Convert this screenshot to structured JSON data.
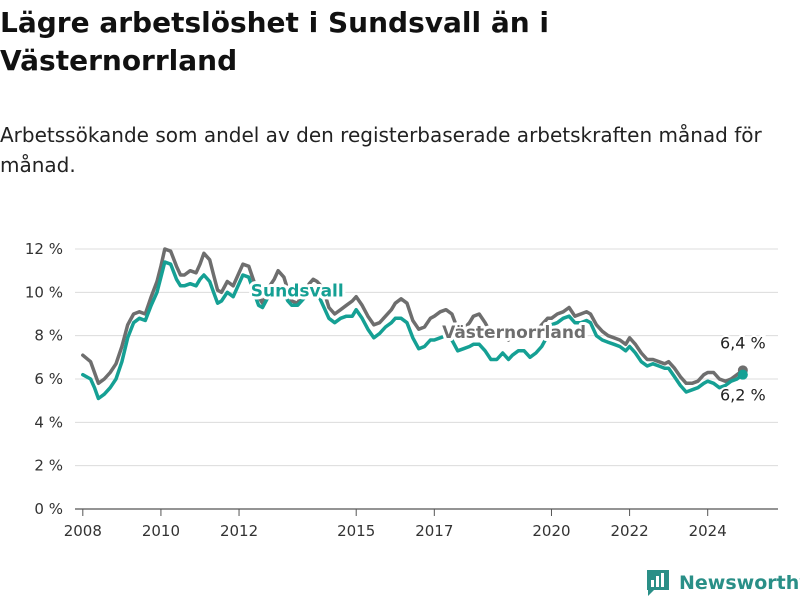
{
  "title": "Lägre arbetslöshet i Sundsvall än i Västernorrland",
  "subtitle": "Arbetssökande som andel av den registerbaserade arbetskraften månad för månad.",
  "brand": {
    "name": "Newsworthy",
    "logo_icon": "bar-chart-speech-bubble-icon"
  },
  "chart_data": {
    "type": "line",
    "ylim": [
      0,
      12
    ],
    "yticks": [
      0,
      2,
      4,
      6,
      8,
      10,
      12
    ],
    "ytick_labels": [
      "0 %",
      "2 %",
      "4 %",
      "6 %",
      "8 %",
      "10 %",
      "12 %"
    ],
    "xlim": [
      2007.8,
      2025.8
    ],
    "xticks": [
      2008,
      2010,
      2012,
      2015,
      2017,
      2020,
      2022,
      2024
    ],
    "xtick_labels": [
      "2008",
      "2010",
      "2012",
      "2015",
      "2017",
      "2020",
      "2022",
      "2024"
    ],
    "grid": true,
    "series": [
      {
        "name": "Västernorrland",
        "color": "#6e6e6e",
        "end_label": "6,4 %",
        "points": [
          [
            2008.0,
            7.1
          ],
          [
            2008.2,
            6.8
          ],
          [
            2008.3,
            6.3
          ],
          [
            2008.4,
            5.8
          ],
          [
            2008.55,
            6.0
          ],
          [
            2008.7,
            6.3
          ],
          [
            2008.85,
            6.7
          ],
          [
            2009.0,
            7.5
          ],
          [
            2009.15,
            8.5
          ],
          [
            2009.3,
            9.0
          ],
          [
            2009.45,
            9.1
          ],
          [
            2009.6,
            9.0
          ],
          [
            2009.75,
            9.8
          ],
          [
            2009.9,
            10.5
          ],
          [
            2010.0,
            11.2
          ],
          [
            2010.1,
            12.0
          ],
          [
            2010.25,
            11.9
          ],
          [
            2010.4,
            11.2
          ],
          [
            2010.5,
            10.8
          ],
          [
            2010.6,
            10.8
          ],
          [
            2010.75,
            11.0
          ],
          [
            2010.9,
            10.9
          ],
          [
            2011.0,
            11.3
          ],
          [
            2011.1,
            11.8
          ],
          [
            2011.25,
            11.5
          ],
          [
            2011.35,
            10.8
          ],
          [
            2011.45,
            10.1
          ],
          [
            2011.55,
            10.0
          ],
          [
            2011.7,
            10.5
          ],
          [
            2011.85,
            10.3
          ],
          [
            2012.0,
            10.9
          ],
          [
            2012.1,
            11.3
          ],
          [
            2012.25,
            11.2
          ],
          [
            2012.4,
            10.4
          ],
          [
            2012.5,
            9.8
          ],
          [
            2012.6,
            9.5
          ],
          [
            2012.75,
            10.2
          ],
          [
            2012.9,
            10.6
          ],
          [
            2013.0,
            11.0
          ],
          [
            2013.15,
            10.7
          ],
          [
            2013.25,
            10.1
          ],
          [
            2013.35,
            9.6
          ],
          [
            2013.5,
            9.5
          ],
          [
            2013.65,
            10.0
          ],
          [
            2013.8,
            10.4
          ],
          [
            2013.9,
            10.6
          ],
          [
            2014.0,
            10.5
          ],
          [
            2014.15,
            10.2
          ],
          [
            2014.3,
            9.3
          ],
          [
            2014.45,
            9.0
          ],
          [
            2014.6,
            9.2
          ],
          [
            2014.75,
            9.4
          ],
          [
            2014.9,
            9.6
          ],
          [
            2015.0,
            9.8
          ],
          [
            2015.15,
            9.4
          ],
          [
            2015.3,
            8.9
          ],
          [
            2015.45,
            8.5
          ],
          [
            2015.6,
            8.6
          ],
          [
            2015.75,
            8.9
          ],
          [
            2015.9,
            9.2
          ],
          [
            2016.0,
            9.5
          ],
          [
            2016.15,
            9.7
          ],
          [
            2016.3,
            9.5
          ],
          [
            2016.45,
            8.7
          ],
          [
            2016.6,
            8.3
          ],
          [
            2016.75,
            8.4
          ],
          [
            2016.9,
            8.8
          ],
          [
            2017.0,
            8.9
          ],
          [
            2017.15,
            9.1
          ],
          [
            2017.3,
            9.2
          ],
          [
            2017.45,
            9.0
          ],
          [
            2017.6,
            8.3
          ],
          [
            2017.75,
            8.3
          ],
          [
            2017.9,
            8.6
          ],
          [
            2018.0,
            8.9
          ],
          [
            2018.15,
            9.0
          ],
          [
            2018.3,
            8.6
          ],
          [
            2018.45,
            8.1
          ],
          [
            2018.6,
            7.9
          ],
          [
            2018.75,
            8.0
          ],
          [
            2018.9,
            7.8
          ],
          [
            2019.0,
            8.1
          ],
          [
            2019.15,
            8.3
          ],
          [
            2019.3,
            8.2
          ],
          [
            2019.45,
            8.0
          ],
          [
            2019.6,
            8.2
          ],
          [
            2019.75,
            8.5
          ],
          [
            2019.9,
            8.8
          ],
          [
            2020.0,
            8.8
          ],
          [
            2020.15,
            9.0
          ],
          [
            2020.3,
            9.1
          ],
          [
            2020.45,
            9.3
          ],
          [
            2020.6,
            8.9
          ],
          [
            2020.75,
            9.0
          ],
          [
            2020.9,
            9.1
          ],
          [
            2021.0,
            9.0
          ],
          [
            2021.15,
            8.5
          ],
          [
            2021.3,
            8.2
          ],
          [
            2021.45,
            8.0
          ],
          [
            2021.6,
            7.9
          ],
          [
            2021.75,
            7.8
          ],
          [
            2021.9,
            7.6
          ],
          [
            2022.0,
            7.9
          ],
          [
            2022.15,
            7.6
          ],
          [
            2022.3,
            7.2
          ],
          [
            2022.45,
            6.9
          ],
          [
            2022.6,
            6.9
          ],
          [
            2022.75,
            6.8
          ],
          [
            2022.9,
            6.7
          ],
          [
            2023.0,
            6.8
          ],
          [
            2023.15,
            6.5
          ],
          [
            2023.3,
            6.1
          ],
          [
            2023.45,
            5.8
          ],
          [
            2023.6,
            5.8
          ],
          [
            2023.75,
            5.9
          ],
          [
            2023.9,
            6.2
          ],
          [
            2024.0,
            6.3
          ],
          [
            2024.15,
            6.3
          ],
          [
            2024.3,
            6.0
          ],
          [
            2024.45,
            5.9
          ],
          [
            2024.6,
            6.0
          ],
          [
            2024.75,
            6.2
          ],
          [
            2024.9,
            6.4
          ]
        ]
      },
      {
        "name": "Sundsvall",
        "color": "#15a094",
        "end_label": "6,2 %",
        "points": [
          [
            2008.0,
            6.2
          ],
          [
            2008.2,
            6.0
          ],
          [
            2008.3,
            5.6
          ],
          [
            2008.4,
            5.1
          ],
          [
            2008.55,
            5.3
          ],
          [
            2008.7,
            5.6
          ],
          [
            2008.85,
            6.0
          ],
          [
            2009.0,
            6.8
          ],
          [
            2009.15,
            7.9
          ],
          [
            2009.3,
            8.6
          ],
          [
            2009.45,
            8.8
          ],
          [
            2009.6,
            8.7
          ],
          [
            2009.75,
            9.4
          ],
          [
            2009.9,
            10.0
          ],
          [
            2010.0,
            10.7
          ],
          [
            2010.1,
            11.4
          ],
          [
            2010.25,
            11.3
          ],
          [
            2010.4,
            10.6
          ],
          [
            2010.5,
            10.3
          ],
          [
            2010.6,
            10.3
          ],
          [
            2010.75,
            10.4
          ],
          [
            2010.9,
            10.3
          ],
          [
            2011.0,
            10.6
          ],
          [
            2011.1,
            10.8
          ],
          [
            2011.25,
            10.5
          ],
          [
            2011.35,
            10.0
          ],
          [
            2011.45,
            9.5
          ],
          [
            2011.55,
            9.6
          ],
          [
            2011.7,
            10.0
          ],
          [
            2011.85,
            9.8
          ],
          [
            2012.0,
            10.4
          ],
          [
            2012.1,
            10.8
          ],
          [
            2012.25,
            10.7
          ],
          [
            2012.4,
            9.9
          ],
          [
            2012.5,
            9.4
          ],
          [
            2012.6,
            9.3
          ],
          [
            2012.75,
            9.8
          ],
          [
            2012.9,
            10.1
          ],
          [
            2013.0,
            10.3
          ],
          [
            2013.15,
            10.0
          ],
          [
            2013.25,
            9.6
          ],
          [
            2013.35,
            9.4
          ],
          [
            2013.5,
            9.4
          ],
          [
            2013.65,
            9.7
          ],
          [
            2013.8,
            10.0
          ],
          [
            2013.9,
            10.1
          ],
          [
            2014.0,
            10.0
          ],
          [
            2014.15,
            9.4
          ],
          [
            2014.3,
            8.8
          ],
          [
            2014.45,
            8.6
          ],
          [
            2014.6,
            8.8
          ],
          [
            2014.75,
            8.9
          ],
          [
            2014.9,
            8.9
          ],
          [
            2015.0,
            9.2
          ],
          [
            2015.15,
            8.8
          ],
          [
            2015.3,
            8.3
          ],
          [
            2015.45,
            7.9
          ],
          [
            2015.6,
            8.1
          ],
          [
            2015.75,
            8.4
          ],
          [
            2015.9,
            8.6
          ],
          [
            2016.0,
            8.8
          ],
          [
            2016.15,
            8.8
          ],
          [
            2016.3,
            8.6
          ],
          [
            2016.45,
            7.9
          ],
          [
            2016.6,
            7.4
          ],
          [
            2016.75,
            7.5
          ],
          [
            2016.9,
            7.8
          ],
          [
            2017.0,
            7.8
          ],
          [
            2017.15,
            7.9
          ],
          [
            2017.3,
            8.0
          ],
          [
            2017.45,
            7.8
          ],
          [
            2017.6,
            7.3
          ],
          [
            2017.75,
            7.4
          ],
          [
            2017.9,
            7.5
          ],
          [
            2018.0,
            7.6
          ],
          [
            2018.15,
            7.6
          ],
          [
            2018.3,
            7.3
          ],
          [
            2018.45,
            6.9
          ],
          [
            2018.6,
            6.9
          ],
          [
            2018.75,
            7.2
          ],
          [
            2018.9,
            6.9
          ],
          [
            2019.0,
            7.1
          ],
          [
            2019.15,
            7.3
          ],
          [
            2019.3,
            7.3
          ],
          [
            2019.45,
            7.0
          ],
          [
            2019.6,
            7.2
          ],
          [
            2019.75,
            7.5
          ],
          [
            2019.9,
            8.0
          ],
          [
            2020.0,
            8.5
          ],
          [
            2020.15,
            8.6
          ],
          [
            2020.3,
            8.8
          ],
          [
            2020.45,
            8.9
          ],
          [
            2020.6,
            8.6
          ],
          [
            2020.75,
            8.6
          ],
          [
            2020.9,
            8.7
          ],
          [
            2021.0,
            8.6
          ],
          [
            2021.15,
            8.0
          ],
          [
            2021.3,
            7.8
          ],
          [
            2021.45,
            7.7
          ],
          [
            2021.6,
            7.6
          ],
          [
            2021.75,
            7.5
          ],
          [
            2021.9,
            7.3
          ],
          [
            2022.0,
            7.5
          ],
          [
            2022.15,
            7.2
          ],
          [
            2022.3,
            6.8
          ],
          [
            2022.45,
            6.6
          ],
          [
            2022.6,
            6.7
          ],
          [
            2022.75,
            6.6
          ],
          [
            2022.9,
            6.5
          ],
          [
            2023.0,
            6.5
          ],
          [
            2023.15,
            6.1
          ],
          [
            2023.3,
            5.7
          ],
          [
            2023.45,
            5.4
          ],
          [
            2023.6,
            5.5
          ],
          [
            2023.75,
            5.6
          ],
          [
            2023.9,
            5.8
          ],
          [
            2024.0,
            5.9
          ],
          [
            2024.15,
            5.8
          ],
          [
            2024.3,
            5.6
          ],
          [
            2024.45,
            5.7
          ],
          [
            2024.6,
            5.9
          ],
          [
            2024.75,
            6.0
          ],
          [
            2024.9,
            6.2
          ]
        ]
      }
    ]
  }
}
